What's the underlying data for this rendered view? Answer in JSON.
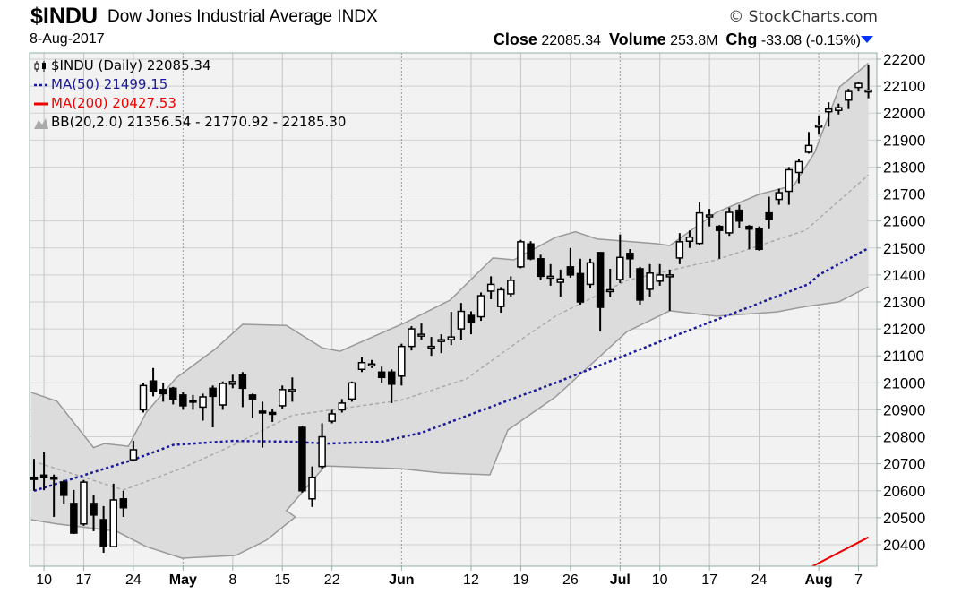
{
  "header": {
    "symbol": "$INDU",
    "name": "Dow Jones Industrial Average INDX",
    "brand": "© StockCharts.com",
    "date": "8-Aug-2017",
    "close_label": "Close",
    "close_value": "22085.34",
    "volume_label": "Volume",
    "volume_value": "253.8M",
    "chg_label": "Chg",
    "chg_value": "-33.08 (-0.15%)",
    "chg_icon": "down-triangle-icon",
    "chg_color": "#0033ff"
  },
  "legend": {
    "price": "$INDU (Daily) 22085.34",
    "ma50": "MA(50) 21499.15",
    "ma200": "MA(200) 20427.53",
    "bb": "BB(20,2.0) 21356.54 - 21770.92 - 22185.30"
  },
  "colors": {
    "ma50": "#1a1a99",
    "ma200": "#ee0000",
    "bb_fill": "#dcdcdc",
    "bb_line": "#999999",
    "ma20": "#aaaaaa",
    "plot_bg": "#f2f2f2"
  },
  "chart_data": {
    "type": "candlestick",
    "title": "$INDU (Daily)",
    "ylim": [
      20320,
      22223
    ],
    "y_ticks": [
      20400,
      20500,
      20600,
      20700,
      20800,
      20900,
      21000,
      21100,
      21200,
      21300,
      21400,
      21500,
      21600,
      21700,
      21800,
      21900,
      22000,
      22100,
      22200
    ],
    "x_ticks": [
      {
        "index": 1,
        "label": "10"
      },
      {
        "index": 5,
        "label": "17"
      },
      {
        "index": 10,
        "label": "24"
      },
      {
        "index": 15,
        "label": "May",
        "month": true
      },
      {
        "index": 20,
        "label": "8"
      },
      {
        "index": 25,
        "label": "15"
      },
      {
        "index": 30,
        "label": "22"
      },
      {
        "index": 37,
        "label": "Jun",
        "month": true
      },
      {
        "index": 44,
        "label": "12"
      },
      {
        "index": 49,
        "label": "19"
      },
      {
        "index": 54,
        "label": "26"
      },
      {
        "index": 59,
        "label": "Jul",
        "month": true
      },
      {
        "index": 63,
        "label": "10"
      },
      {
        "index": 68,
        "label": "17"
      },
      {
        "index": 73,
        "label": "24"
      },
      {
        "index": 79,
        "label": "Aug",
        "month": true
      },
      {
        "index": 83,
        "label": "7"
      }
    ],
    "ohlc_fields": [
      "open",
      "high",
      "low",
      "close"
    ],
    "ohlc": [
      [
        20650,
        20718,
        20600,
        20642
      ],
      [
        20658,
        20742,
        20602,
        20650
      ],
      [
        20650,
        20660,
        20503,
        20645
      ],
      [
        20632,
        20640,
        20550,
        20583
      ],
      [
        20553,
        20603,
        20440,
        20443
      ],
      [
        20477,
        20640,
        20470,
        20632
      ],
      [
        20553,
        20585,
        20450,
        20510
      ],
      [
        20493,
        20543,
        20370,
        20393
      ],
      [
        20393,
        20626,
        20390,
        20566
      ],
      [
        20570,
        20600,
        20503,
        20537
      ],
      [
        20715,
        20785,
        20710,
        20752
      ],
      [
        20900,
        21000,
        20890,
        20990
      ],
      [
        21007,
        21055,
        20950,
        20968
      ],
      [
        20975,
        21000,
        20930,
        20960
      ],
      [
        20980,
        20985,
        20920,
        20940
      ],
      [
        20955,
        20965,
        20900,
        20915
      ],
      [
        20935,
        20955,
        20900,
        20930
      ],
      [
        20910,
        20960,
        20860,
        20948
      ],
      [
        20980,
        20990,
        20835,
        20950
      ],
      [
        20918,
        21005,
        20900,
        20998
      ],
      [
        20995,
        21030,
        20980,
        21005
      ],
      [
        21030,
        21040,
        20910,
        20980
      ],
      [
        20955,
        20960,
        20870,
        20940
      ],
      [
        20895,
        20930,
        20760,
        20890
      ],
      [
        20890,
        20905,
        20855,
        20886
      ],
      [
        20915,
        20990,
        20905,
        20975
      ],
      [
        20975,
        21020,
        20930,
        20975
      ],
      [
        20835,
        20840,
        20593,
        20600
      ],
      [
        20570,
        20690,
        20540,
        20650
      ],
      [
        20690,
        20850,
        20680,
        20800
      ],
      [
        20858,
        20900,
        20850,
        20885
      ],
      [
        20900,
        20940,
        20890,
        20925
      ],
      [
        20940,
        21005,
        20930,
        21000
      ],
      [
        21050,
        21095,
        21040,
        21075
      ],
      [
        21070,
        21085,
        21055,
        21070
      ],
      [
        21040,
        21060,
        21000,
        21020
      ],
      [
        21040,
        21050,
        20925,
        20995
      ],
      [
        21025,
        21145,
        20990,
        21135
      ],
      [
        21135,
        21210,
        21120,
        21200
      ],
      [
        21180,
        21220,
        21160,
        21180
      ],
      [
        21135,
        21170,
        21100,
        21135
      ],
      [
        21160,
        21180,
        21110,
        21160
      ],
      [
        21160,
        21263,
        21140,
        21170
      ],
      [
        21200,
        21296,
        21160,
        21265
      ],
      [
        21250,
        21265,
        21180,
        21225
      ],
      [
        21245,
        21335,
        21230,
        21323
      ],
      [
        21340,
        21395,
        21310,
        21365
      ],
      [
        21283,
        21355,
        21260,
        21345
      ],
      [
        21330,
        21395,
        21320,
        21380
      ],
      [
        21430,
        21530,
        21425,
        21523
      ],
      [
        21515,
        21525,
        21455,
        21460
      ],
      [
        21460,
        21475,
        21380,
        21395
      ],
      [
        21395,
        21440,
        21360,
        21395
      ],
      [
        21373,
        21420,
        21320,
        21385
      ],
      [
        21430,
        21500,
        21390,
        21400
      ],
      [
        21405,
        21460,
        21290,
        21300
      ],
      [
        21365,
        21460,
        21350,
        21445
      ],
      [
        21483,
        21485,
        21190,
        21280
      ],
      [
        21345,
        21423,
        21317,
        21345
      ],
      [
        21383,
        21550,
        21370,
        21465
      ],
      [
        21480,
        21496,
        21390,
        21460
      ],
      [
        21423,
        21430,
        21290,
        21307
      ],
      [
        21347,
        21440,
        21320,
        21407
      ],
      [
        21377,
        21440,
        21360,
        21400
      ],
      [
        21400,
        21420,
        21267,
        21400
      ],
      [
        21463,
        21555,
        21440,
        21523
      ],
      [
        21525,
        21565,
        21500,
        21540
      ],
      [
        21517,
        21670,
        21510,
        21630
      ],
      [
        21622,
        21645,
        21580,
        21622
      ],
      [
        21580,
        21585,
        21460,
        21565
      ],
      [
        21556,
        21650,
        21545,
        21632
      ],
      [
        21640,
        21660,
        21575,
        21600
      ],
      [
        21580,
        21585,
        21495,
        21570
      ],
      [
        21572,
        21580,
        21490,
        21495
      ],
      [
        21630,
        21690,
        21570,
        21605
      ],
      [
        21680,
        21720,
        21660,
        21705
      ],
      [
        21710,
        21800,
        21660,
        21790
      ],
      [
        21780,
        21830,
        21740,
        21820
      ],
      [
        21855,
        21930,
        21850,
        21880
      ],
      [
        21955,
        21990,
        21920,
        21955
      ],
      [
        22005,
        22040,
        21950,
        22015
      ],
      [
        22010,
        22035,
        21995,
        22020
      ],
      [
        22048,
        22090,
        22015,
        22080
      ],
      [
        22095,
        22115,
        22080,
        22110
      ],
      [
        22085,
        22180,
        22055,
        22085
      ]
    ],
    "ma50_points": [
      [
        0,
        20600
      ],
      [
        10,
        20715
      ],
      [
        14,
        20770
      ],
      [
        20,
        20785
      ],
      [
        26,
        20782
      ],
      [
        29.5,
        20775
      ],
      [
        35,
        20782
      ],
      [
        39,
        20815
      ],
      [
        52.5,
        21000
      ],
      [
        63.5,
        21160
      ],
      [
        78,
        21366
      ],
      [
        79,
        21400
      ],
      [
        84,
        21499.15
      ]
    ],
    "ma20_points": [
      [
        0.5,
        20702
      ],
      [
        5,
        20650
      ],
      [
        9,
        20603
      ],
      [
        15,
        20685
      ],
      [
        20,
        20768
      ],
      [
        26,
        20880
      ],
      [
        36.9,
        20935
      ],
      [
        43.5,
        21014
      ],
      [
        48.9,
        21157
      ],
      [
        52.5,
        21247
      ],
      [
        59.7,
        21380
      ],
      [
        68.7,
        21456
      ],
      [
        77.7,
        21566
      ],
      [
        78.6,
        21596
      ],
      [
        84,
        21770.92
      ]
    ],
    "ma200_points": [
      [
        78,
        20313
      ],
      [
        84,
        20427.53
      ]
    ],
    "bb_upper_points": [
      [
        -0.3,
        20965
      ],
      [
        2.3,
        20932
      ],
      [
        6,
        20760
      ],
      [
        7.1,
        20775
      ],
      [
        9.5,
        20765
      ],
      [
        11.3,
        20890
      ],
      [
        14.3,
        21018
      ],
      [
        18.2,
        21124
      ],
      [
        21,
        21217
      ],
      [
        25.4,
        21213
      ],
      [
        29,
        21130
      ],
      [
        30.8,
        21117
      ],
      [
        37.4,
        21224
      ],
      [
        41.9,
        21307
      ],
      [
        46.2,
        21463
      ],
      [
        48.3,
        21456
      ],
      [
        52.5,
        21539
      ],
      [
        54.5,
        21560
      ],
      [
        56.7,
        21533
      ],
      [
        62.7,
        21516
      ],
      [
        64,
        21509
      ],
      [
        68.7,
        21632
      ],
      [
        73,
        21699
      ],
      [
        76.5,
        21732
      ],
      [
        78.6,
        21855
      ],
      [
        81.1,
        22097
      ],
      [
        84,
        22185.3
      ]
    ],
    "bb_lower_points": [
      [
        -0.3,
        20493
      ],
      [
        2.3,
        20477
      ],
      [
        8.3,
        20450
      ],
      [
        11.3,
        20393
      ],
      [
        14.9,
        20350
      ],
      [
        20.3,
        20360
      ],
      [
        23.4,
        20417
      ],
      [
        26.3,
        20503
      ],
      [
        25.4,
        20526
      ],
      [
        29.3,
        20692
      ],
      [
        36.9,
        20682
      ],
      [
        41,
        20666
      ],
      [
        45.9,
        20659
      ],
      [
        47.7,
        20825
      ],
      [
        52.5,
        20948
      ],
      [
        59.7,
        21190
      ],
      [
        64,
        21267
      ],
      [
        68.7,
        21247
      ],
      [
        74.8,
        21263
      ],
      [
        77.7,
        21283
      ],
      [
        81,
        21300
      ],
      [
        84,
        21356.54
      ]
    ]
  }
}
